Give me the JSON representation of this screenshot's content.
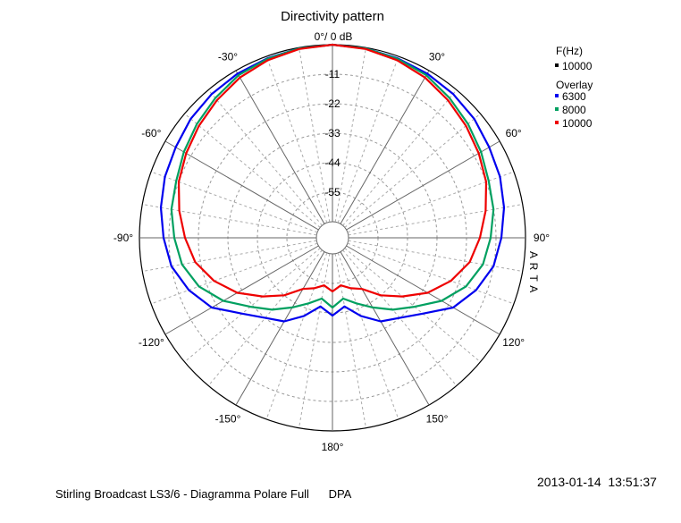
{
  "chart_data": {
    "type": "polar",
    "title": "Directivity pattern",
    "top_label": "0°/ 0 dB",
    "radial_unit": "dB",
    "rlim": [
      -66,
      0
    ],
    "radial_ticks": [
      -11,
      -22,
      -33,
      -44,
      -55
    ],
    "radial_tick_labels": [
      "-11",
      "-22",
      "-33",
      "-44",
      "-55"
    ],
    "angle_labels": [
      {
        "angle": 30,
        "text": "30°"
      },
      {
        "angle": 60,
        "text": "60°"
      },
      {
        "angle": 90,
        "text": "90°"
      },
      {
        "angle": 120,
        "text": "120°"
      },
      {
        "angle": 150,
        "text": "150°"
      },
      {
        "angle": 180,
        "text": "180°"
      },
      {
        "angle": -150,
        "text": "-150°"
      },
      {
        "angle": -120,
        "text": "-120°"
      },
      {
        "angle": -90,
        "text": "-90°"
      },
      {
        "angle": -60,
        "text": "-60°"
      },
      {
        "angle": -30,
        "text": "-30°"
      }
    ],
    "angle_step_major": 30,
    "angle_step_minor": 10,
    "grid": true,
    "legend": {
      "position": "top-right",
      "main_header": "F(Hz)",
      "main_entry": "10000",
      "overlay_header": "Overlay"
    },
    "series": [
      {
        "name": "6300",
        "color": "#0000ee",
        "angles": [
          0,
          10,
          20,
          30,
          40,
          50,
          60,
          70,
          80,
          90,
          100,
          110,
          120,
          130,
          140,
          150,
          160,
          170,
          180,
          -170,
          -160,
          -150,
          -140,
          -130,
          -120,
          -110,
          -100,
          -90,
          -80,
          -70,
          -60,
          -50,
          -40,
          -30,
          -20,
          -10
        ],
        "values": [
          0,
          -0.3,
          -0.8,
          -1.3,
          -2,
          -3,
          -4.5,
          -5.5,
          -7,
          -9,
          -11,
          -15,
          -20,
          -28,
          -33,
          -36,
          -41,
          -46,
          -43,
          -46,
          -41,
          -36,
          -33,
          -28,
          -20,
          -15,
          -11,
          -9,
          -7,
          -5.5,
          -4.5,
          -3,
          -2,
          -1.3,
          -0.8,
          -0.3
        ]
      },
      {
        "name": "8000",
        "color": "#00a060",
        "angles": [
          0,
          10,
          20,
          30,
          40,
          50,
          60,
          70,
          80,
          90,
          100,
          110,
          120,
          130,
          140,
          150,
          160,
          170,
          180,
          -170,
          -160,
          -150,
          -140,
          -130,
          -120,
          -110,
          -100,
          -90,
          -80,
          -70,
          -60,
          -50,
          -40,
          -30,
          -20,
          -10
        ],
        "values": [
          0,
          -0.3,
          -1,
          -2,
          -4,
          -6,
          -8,
          -10,
          -11,
          -13,
          -15,
          -19,
          -25,
          -32,
          -37,
          -42,
          -46,
          -49,
          -46,
          -49,
          -46,
          -42,
          -37,
          -32,
          -25,
          -19,
          -15,
          -13,
          -11,
          -10,
          -8,
          -6,
          -4,
          -2,
          -1,
          -0.3
        ]
      },
      {
        "name": "10000",
        "color": "#ee0000",
        "angles": [
          0,
          10,
          20,
          30,
          40,
          50,
          60,
          70,
          80,
          90,
          100,
          110,
          120,
          130,
          140,
          150,
          160,
          170,
          180,
          -170,
          -160,
          -150,
          -140,
          -130,
          -120,
          -110,
          -100,
          -90,
          -80,
          -70,
          -60,
          -50,
          -40,
          -30,
          -20,
          -10
        ],
        "values": [
          0,
          -0.5,
          -1.5,
          -3,
          -5,
          -7,
          -9,
          -11,
          -14,
          -17,
          -20,
          -25,
          -31,
          -38,
          -44,
          -50,
          -52,
          -54,
          -52,
          -54,
          -52,
          -50,
          -44,
          -38,
          -31,
          -25,
          -20,
          -17,
          -14,
          -11,
          -9,
          -7,
          -5,
          -3,
          -1.5,
          -0.5
        ]
      }
    ]
  },
  "side_label": "A R T A",
  "footer": {
    "timestamp": "2013-01-14  13:51:37",
    "caption": "Stirling Broadcast LS3/6 - Diagramma Polare Full",
    "caption_suffix": "DPA"
  }
}
